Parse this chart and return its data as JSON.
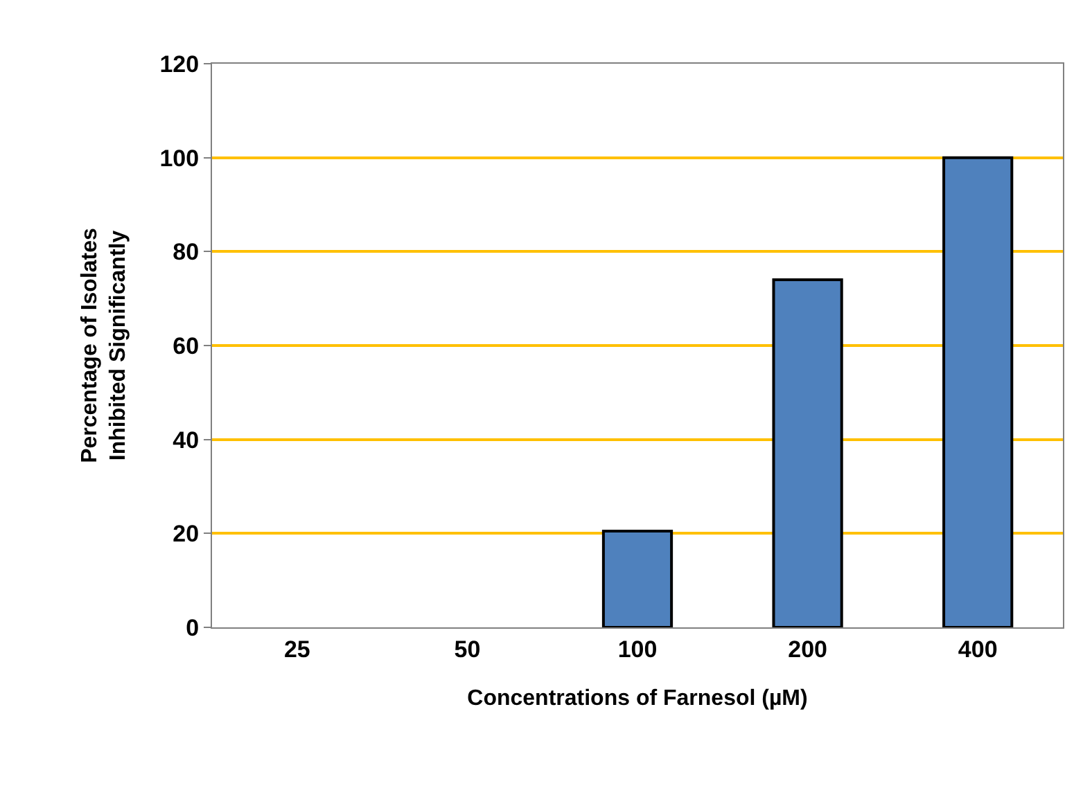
{
  "chart_data": {
    "type": "bar",
    "xlabel": "Concentrations of Farnesol (µM)",
    "ylabel": "Percentage of Isolates\nInhibited Significantly",
    "categories": [
      "25",
      "50",
      "100",
      "200",
      "400"
    ],
    "values": [
      0,
      0,
      20.5,
      74,
      100
    ],
    "color": "#4f81bd",
    "ylim": [
      0,
      120
    ],
    "yticks": [
      0,
      20,
      40,
      60,
      80,
      100,
      120
    ],
    "grid": "y"
  }
}
